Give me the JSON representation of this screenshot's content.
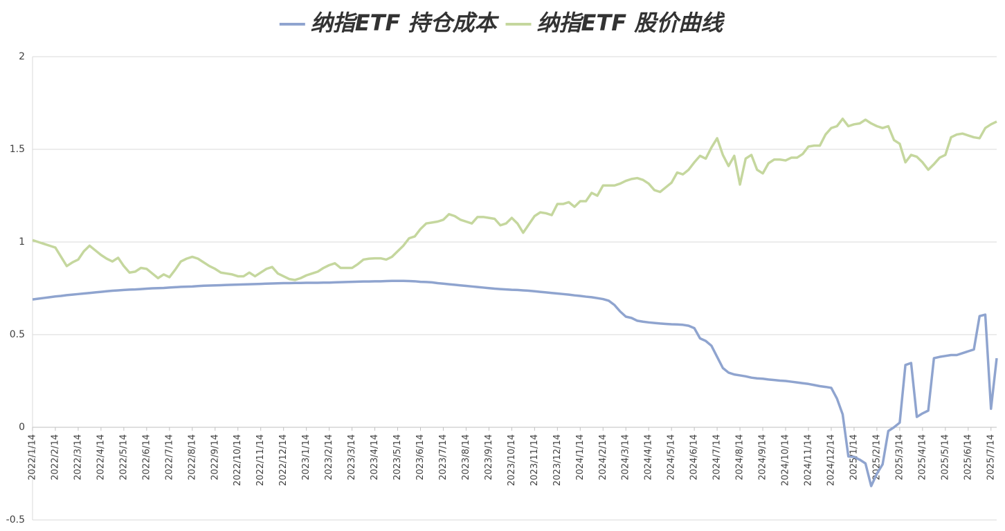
{
  "chart_data": {
    "type": "line",
    "categories": [
      "2022/1/14",
      null,
      null,
      null,
      "2022/2/14",
      null,
      null,
      null,
      "2022/3/14",
      null,
      null,
      null,
      "2022/4/14",
      null,
      null,
      null,
      "2022/5/14",
      null,
      null,
      null,
      "2022/6/14",
      null,
      null,
      null,
      "2022/7/14",
      null,
      null,
      null,
      "2022/8/14",
      null,
      null,
      null,
      "2022/9/14",
      null,
      null,
      null,
      "2022/10/14",
      null,
      null,
      null,
      "2022/11/14",
      null,
      null,
      null,
      "2022/12/14",
      null,
      null,
      null,
      "2023/1/14",
      null,
      null,
      null,
      "2023/2/14",
      null,
      null,
      null,
      "2023/3/14",
      null,
      null,
      null,
      "2023/4/14",
      null,
      null,
      null,
      "2023/5/14",
      null,
      null,
      null,
      "2023/6/14",
      null,
      null,
      null,
      "2023/7/14",
      null,
      null,
      null,
      "2023/8/14",
      null,
      null,
      null,
      "2023/9/14",
      null,
      null,
      null,
      "2023/10/14",
      null,
      null,
      null,
      "2023/11/14",
      null,
      null,
      null,
      "2023/12/14",
      null,
      null,
      null,
      "2024/1/14",
      null,
      null,
      null,
      "2024/2/14",
      null,
      null,
      null,
      "2024/3/14",
      null,
      null,
      null,
      "2024/4/14",
      null,
      null,
      null,
      "2024/5/14",
      null,
      null,
      null,
      "2024/6/14",
      null,
      null,
      null,
      "2024/7/14",
      null,
      null,
      null,
      "2024/8/14",
      null,
      null,
      null,
      "2024/9/14",
      null,
      null,
      null,
      "2024/10/14",
      null,
      null,
      null,
      "2024/11/14",
      null,
      null,
      null,
      "2024/12/14",
      null,
      null,
      null,
      "2025/1/14",
      null,
      null,
      null,
      "2025/2/14",
      null,
      null,
      null,
      "2025/3/14",
      null,
      null,
      null,
      "2025/4/14",
      null,
      null,
      null,
      "2025/5/14",
      null,
      null,
      null,
      "2025/6/14",
      null,
      null,
      null,
      "2025/7/14",
      null
    ],
    "series": [
      {
        "name": "纳指ETF 持仓成本",
        "color": "#8fa4cf",
        "values": [
          0.69,
          0.694,
          0.698,
          0.702,
          0.706,
          0.709,
          0.713,
          0.716,
          0.719,
          0.722,
          0.725,
          0.728,
          0.731,
          0.734,
          0.737,
          0.739,
          0.741,
          0.743,
          0.744,
          0.746,
          0.748,
          0.75,
          0.751,
          0.752,
          0.754,
          0.756,
          0.758,
          0.759,
          0.76,
          0.762,
          0.764,
          0.765,
          0.766,
          0.767,
          0.768,
          0.769,
          0.77,
          0.771,
          0.772,
          0.773,
          0.774,
          0.775,
          0.776,
          0.777,
          0.778,
          0.778,
          0.779,
          0.779,
          0.78,
          0.78,
          0.78,
          0.781,
          0.781,
          0.782,
          0.783,
          0.784,
          0.785,
          0.786,
          0.787,
          0.787,
          0.788,
          0.788,
          0.789,
          0.79,
          0.79,
          0.79,
          0.789,
          0.788,
          0.785,
          0.784,
          0.782,
          0.778,
          0.775,
          0.772,
          0.769,
          0.766,
          0.763,
          0.76,
          0.757,
          0.754,
          0.751,
          0.748,
          0.746,
          0.744,
          0.742,
          0.741,
          0.739,
          0.737,
          0.734,
          0.731,
          0.728,
          0.725,
          0.722,
          0.719,
          0.716,
          0.712,
          0.709,
          0.705,
          0.702,
          0.697,
          0.692,
          0.683,
          0.66,
          0.625,
          0.597,
          0.59,
          0.575,
          0.57,
          0.566,
          0.563,
          0.56,
          0.558,
          0.556,
          0.555,
          0.553,
          0.548,
          0.535,
          0.48,
          0.466,
          0.44,
          0.38,
          0.32,
          0.295,
          0.285,
          0.28,
          0.275,
          0.268,
          0.264,
          0.262,
          0.258,
          0.255,
          0.252,
          0.25,
          0.246,
          0.242,
          0.238,
          0.234,
          0.228,
          0.222,
          0.218,
          0.213,
          0.155,
          0.07,
          -0.157,
          -0.16,
          -0.175,
          -0.195,
          -0.317,
          -0.25,
          -0.2,
          -0.02,
          0.0,
          0.025,
          0.336,
          0.347,
          0.056,
          0.075,
          0.09,
          0.373,
          0.38,
          0.385,
          0.39,
          0.39,
          0.4,
          0.41,
          0.42,
          0.6,
          0.608,
          0.1,
          0.373
        ]
      },
      {
        "name": "纳指ETF 股价曲线",
        "color": "#c5d79e",
        "values": [
          1.01,
          1.0,
          0.99,
          0.98,
          0.97,
          0.92,
          0.87,
          0.89,
          0.905,
          0.95,
          0.98,
          0.955,
          0.93,
          0.91,
          0.895,
          0.915,
          0.87,
          0.835,
          0.84,
          0.86,
          0.855,
          0.83,
          0.805,
          0.825,
          0.81,
          0.85,
          0.895,
          0.91,
          0.92,
          0.91,
          0.89,
          0.87,
          0.855,
          0.835,
          0.83,
          0.825,
          0.815,
          0.815,
          0.835,
          0.815,
          0.835,
          0.855,
          0.865,
          0.83,
          0.815,
          0.8,
          0.795,
          0.805,
          0.82,
          0.83,
          0.84,
          0.86,
          0.875,
          0.885,
          0.86,
          0.86,
          0.86,
          0.88,
          0.905,
          0.91,
          0.912,
          0.912,
          0.905,
          0.92,
          0.95,
          0.98,
          1.02,
          1.03,
          1.07,
          1.1,
          1.105,
          1.11,
          1.12,
          1.15,
          1.14,
          1.12,
          1.11,
          1.1,
          1.135,
          1.135,
          1.13,
          1.125,
          1.09,
          1.1,
          1.13,
          1.1,
          1.05,
          1.095,
          1.14,
          1.16,
          1.155,
          1.145,
          1.205,
          1.205,
          1.215,
          1.19,
          1.22,
          1.22,
          1.265,
          1.25,
          1.305,
          1.305,
          1.305,
          1.315,
          1.33,
          1.34,
          1.345,
          1.335,
          1.315,
          1.28,
          1.27,
          1.295,
          1.32,
          1.375,
          1.365,
          1.39,
          1.43,
          1.465,
          1.45,
          1.51,
          1.56,
          1.47,
          1.41,
          1.465,
          1.31,
          1.45,
          1.47,
          1.39,
          1.37,
          1.425,
          1.445,
          1.445,
          1.44,
          1.455,
          1.455,
          1.475,
          1.515,
          1.52,
          1.52,
          1.58,
          1.615,
          1.625,
          1.665,
          1.625,
          1.635,
          1.64,
          1.66,
          1.64,
          1.625,
          1.615,
          1.625,
          1.55,
          1.53,
          1.43,
          1.47,
          1.46,
          1.43,
          1.39,
          1.42,
          1.455,
          1.47,
          1.565,
          1.58,
          1.585,
          1.575,
          1.565,
          1.56,
          1.615,
          1.635,
          1.65
        ]
      }
    ],
    "ylim": [
      -0.5,
      2
    ],
    "yticks": [
      -0.5,
      0,
      0.5,
      1,
      1.5,
      2
    ],
    "grid": true,
    "legend": "top"
  }
}
